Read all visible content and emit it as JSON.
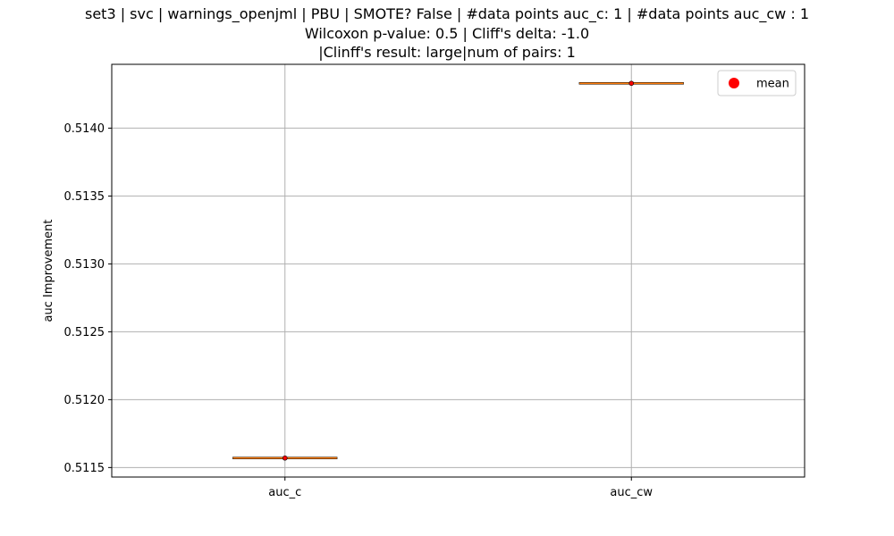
{
  "chart_data": {
    "type": "box",
    "title_lines": [
      "set3 | svc | warnings_openjml | PBU | SMOTE? False | #data points auc_c: 1 | #data points auc_cw : 1",
      "Wilcoxon p-value: 0.5 | Cliff's delta: -1.0",
      "|Clinff's result: large|num of pairs: 1"
    ],
    "ylabel": "auc Improvement",
    "xlabel": "",
    "categories": [
      "auc_c",
      "auc_cw"
    ],
    "values": [
      0.51157,
      0.51433
    ],
    "means": [
      0.51157,
      0.51433
    ],
    "ylim": [
      0.51143,
      0.51447
    ],
    "yticks": [
      0.5115,
      0.512,
      0.5125,
      0.513,
      0.5135,
      0.514
    ],
    "ytick_labels": [
      "0.5115",
      "0.5120",
      "0.5125",
      "0.5130",
      "0.5135",
      "0.5140"
    ],
    "grid": true,
    "legend": {
      "placement": "top-right",
      "entries": [
        {
          "label": "mean",
          "marker": "circle",
          "color": "#ff0000"
        }
      ]
    },
    "colors": {
      "median_line": "#ff7f0e",
      "box_edge": "#000000",
      "mean_marker": "#ff0000",
      "grid": "#b0b0b0"
    }
  }
}
